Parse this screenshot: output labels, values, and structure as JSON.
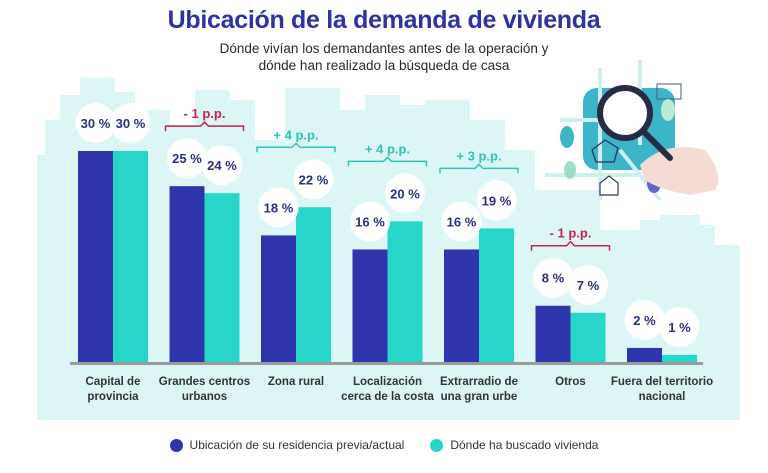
{
  "header": {
    "title": "Ubicación de la demanda de vivienda",
    "subtitle_line1": "Dónde vivían los demandantes antes de la operación y",
    "subtitle_line2": "dónde han realizado la búsqueda de casa"
  },
  "colors": {
    "series_previous": "#2e36ad",
    "series_search": "#27d6c8",
    "negative_diff": "#c0244f",
    "positive_diff": "#2fc4b8",
    "background_panel": "#dcf6f5",
    "axis": "#9a9a9a"
  },
  "illustration": {
    "icon": "magnifying-glass-over-map-icon"
  },
  "chart_data": {
    "type": "bar",
    "title": "Ubicación de la demanda de vivienda",
    "subtitle": "Dónde vivían los demandantes antes de la operación y dónde han realizado la búsqueda de casa",
    "xlabel": "",
    "ylabel": "",
    "ylim": [
      0,
      30
    ],
    "grid": false,
    "legend_position": "bottom-center",
    "categories": [
      [
        "Capital de",
        "provincia"
      ],
      [
        "Grandes centros",
        "urbanos"
      ],
      [
        "Zona rural"
      ],
      [
        "Localización",
        "cerca de la costa"
      ],
      [
        "Extrarradio de",
        "una gran urbe"
      ],
      [
        "Otros"
      ],
      [
        "Fuera del territorio",
        "nacional"
      ]
    ],
    "series": [
      {
        "name": "Ubicación de su residencia previa/actual",
        "values": [
          30,
          25,
          18,
          16,
          16,
          8,
          2
        ]
      },
      {
        "name": "Dónde ha buscado vivienda",
        "values": [
          30,
          24,
          22,
          20,
          19,
          7,
          1
        ]
      }
    ],
    "value_labels": [
      [
        "30 %",
        "30 %"
      ],
      [
        "25 %",
        "24 %"
      ],
      [
        "18 %",
        "22 %"
      ],
      [
        "16 %",
        "20 %"
      ],
      [
        "16 %",
        "19 %"
      ],
      [
        "8 %",
        "7 %"
      ],
      [
        "2 %",
        "1 %"
      ]
    ],
    "annotations": [
      {
        "category_index": 1,
        "text": "- 1 p.p.",
        "sign": "negative"
      },
      {
        "category_index": 2,
        "text": "+ 4 p.p.",
        "sign": "positive"
      },
      {
        "category_index": 3,
        "text": "+ 4 p.p.",
        "sign": "positive"
      },
      {
        "category_index": 4,
        "text": "+ 3 p.p.",
        "sign": "positive"
      },
      {
        "category_index": 5,
        "text": "- 1 p.p.",
        "sign": "negative"
      }
    ]
  },
  "legend": {
    "items": [
      {
        "label": "Ubicación de su residencia previa/actual",
        "color": "#2e36ad"
      },
      {
        "label": "Dónde ha buscado vivienda",
        "color": "#27d6c8"
      }
    ]
  }
}
